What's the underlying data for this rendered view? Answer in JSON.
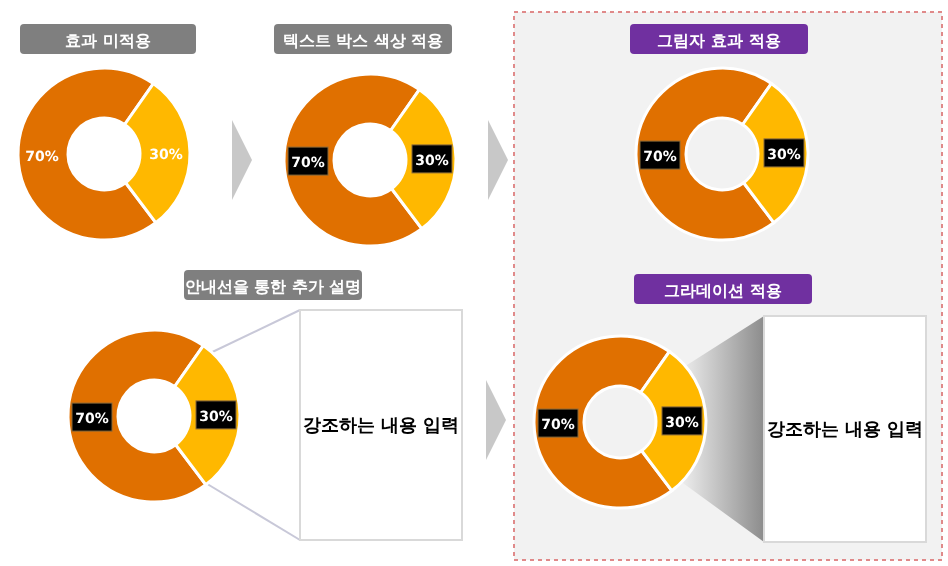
{
  "chart_data": [
    {
      "type": "donut",
      "title": "효과 미적용",
      "categories": [
        null,
        null
      ],
      "values": [
        70,
        30
      ],
      "colors": [
        "#e07000",
        "#ffb800"
      ],
      "value_labels": [
        "70%",
        "30%"
      ]
    },
    {
      "type": "donut",
      "title": "텍스트 박스 색상 적용",
      "categories": [
        null,
        null
      ],
      "values": [
        70,
        30
      ],
      "colors": [
        "#e07000",
        "#ffb800"
      ],
      "value_labels": [
        "70%",
        "30%"
      ]
    },
    {
      "type": "donut",
      "title": "그림자 효과 적용",
      "categories": [
        null,
        null
      ],
      "values": [
        70,
        30
      ],
      "colors": [
        "#e07000",
        "#ffb800"
      ],
      "value_labels": [
        "70%",
        "30%"
      ]
    },
    {
      "type": "donut",
      "title": "안내선을 통한 추가 설명",
      "categories": [
        null,
        null
      ],
      "values": [
        70,
        30
      ],
      "colors": [
        "#e07000",
        "#ffb800"
      ],
      "value_labels": [
        "70%",
        "30%"
      ],
      "annotations": [
        "강조하는 내용 입력"
      ]
    },
    {
      "type": "donut",
      "title": "그라데이션 적용",
      "categories": [
        null,
        null
      ],
      "values": [
        70,
        30
      ],
      "colors": [
        "#e07000",
        "#ffb800"
      ],
      "value_labels": [
        "70%",
        "30%"
      ],
      "annotations": [
        "강조하는 내용 입력"
      ]
    }
  ]
}
